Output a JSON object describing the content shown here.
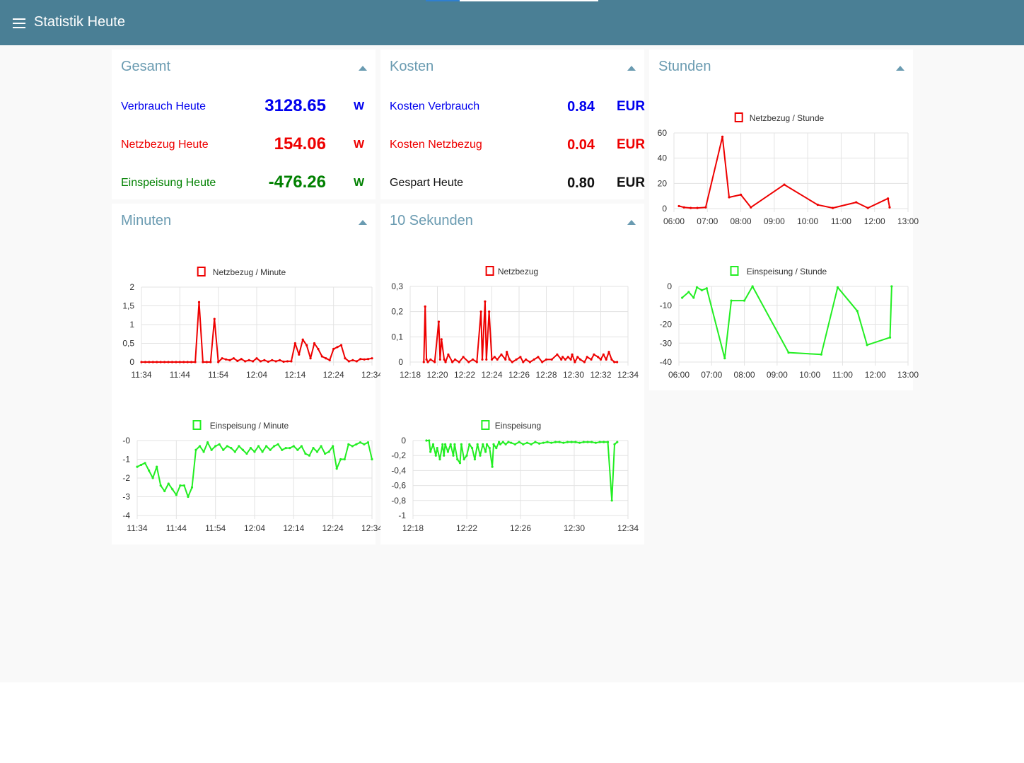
{
  "app": {
    "title": "Statistik Heute"
  },
  "colors": {
    "toolbar": "#4a7f95",
    "card_title": "#6a9bb1",
    "blue": "#0000ee",
    "red": "#ee0000",
    "green": "#008000",
    "series_red": "#ee0000",
    "series_green": "#22ee22"
  },
  "gesamt": {
    "title": "Gesamt",
    "rows": [
      {
        "label": "Verbrauch Heute",
        "value": "3128.65",
        "unit": "W",
        "color": "#0000ee"
      },
      {
        "label": "Netzbezug Heute",
        "value": "154.06",
        "unit": "W",
        "color": "#ee0000"
      },
      {
        "label": "Einspeisung Heute",
        "value": "-476.26",
        "unit": "W",
        "color": "#008000"
      }
    ]
  },
  "kosten": {
    "title": "Kosten",
    "rows": [
      {
        "label": "Kosten Verbrauch",
        "value": "0.84",
        "unit": "EUR",
        "color": "#0000ee"
      },
      {
        "label": "Kosten Netzbezug",
        "value": "0.04",
        "unit": "EUR",
        "color": "#ee0000"
      },
      {
        "label": "Gespart Heute",
        "value": "0.80",
        "unit": "EUR",
        "color": "#111111"
      }
    ]
  },
  "stunden": {
    "title": "Stunden"
  },
  "minuten": {
    "title": "Minuten"
  },
  "sekunden": {
    "title": "10 Sekunden"
  },
  "chart_data": [
    {
      "id": "stunden-netz",
      "type": "line",
      "legend": "Netzbezug / Stunde",
      "color": "#ee0000",
      "xlim": [
        6,
        13
      ],
      "x_ticks": [
        6,
        7,
        8,
        9,
        10,
        11,
        12,
        13
      ],
      "x_tick_labels": [
        "06:00",
        "07:00",
        "08:00",
        "09:00",
        "10:00",
        "11:00",
        "12:00",
        "13:00"
      ],
      "ylim": [
        0,
        60
      ],
      "y_ticks": [
        0,
        20,
        40,
        60
      ],
      "y_tick_labels": [
        "0",
        "20",
        "40",
        "60"
      ],
      "x": [
        6.15,
        6.3,
        6.5,
        6.7,
        6.95,
        7.45,
        7.65,
        8.0,
        8.3,
        9.3,
        10.3,
        10.75,
        11.45,
        11.8,
        12.4,
        12.45
      ],
      "y": [
        2,
        1,
        0.5,
        0.5,
        1,
        57,
        9,
        11,
        1,
        19,
        3,
        0.5,
        5,
        0.5,
        8,
        1
      ]
    },
    {
      "id": "stunden-einsp",
      "type": "line",
      "legend": "Einspeisung / Stunde",
      "color": "#22ee22",
      "xlim": [
        6,
        13
      ],
      "x_ticks": [
        6,
        7,
        8,
        9,
        10,
        11,
        12,
        13
      ],
      "x_tick_labels": [
        "06:00",
        "07:00",
        "08:00",
        "09:00",
        "10:00",
        "11:00",
        "12:00",
        "13:00"
      ],
      "ylim": [
        -40,
        0
      ],
      "y_ticks": [
        0,
        -10,
        -20,
        -30,
        -40
      ],
      "y_tick_labels": [
        "0",
        "-10",
        "-20",
        "-30",
        "-40"
      ],
      "x": [
        6.1,
        6.3,
        6.45,
        6.55,
        6.7,
        6.85,
        7.4,
        7.6,
        8.0,
        8.25,
        9.35,
        10.35,
        10.85,
        11.45,
        11.75,
        12.45,
        12.5
      ],
      "y": [
        -6,
        -3,
        -6,
        -0.5,
        -2,
        -1,
        -38,
        -7.5,
        -7.5,
        0,
        -35,
        -36,
        -0.5,
        -13,
        -31,
        -27,
        0
      ]
    },
    {
      "id": "minuten-netz",
      "type": "line",
      "legend": "Netzbezug / Minute",
      "color": "#ee0000",
      "xlim": [
        0,
        60
      ],
      "x_ticks": [
        0,
        10,
        20,
        30,
        40,
        50,
        60
      ],
      "x_tick_labels": [
        "11:34",
        "11:44",
        "11:54",
        "12:04",
        "12:14",
        "12:24",
        "12:34"
      ],
      "ylim": [
        0,
        2
      ],
      "y_ticks": [
        0,
        0.5,
        1,
        1.5,
        2
      ],
      "y_tick_labels": [
        "0",
        "0,5",
        "1",
        "1,5",
        "2"
      ],
      "x": [
        0,
        1,
        2,
        3,
        4,
        5,
        6,
        7,
        8,
        9,
        10,
        11,
        12,
        13,
        14,
        15,
        16,
        17,
        18,
        19,
        20,
        21,
        22,
        23,
        24,
        25,
        26,
        27,
        28,
        29,
        30,
        31,
        32,
        33,
        34,
        35,
        36,
        37,
        38,
        39,
        40,
        41,
        42,
        43,
        44,
        45,
        46,
        47,
        48,
        49,
        50,
        51,
        52,
        53,
        54,
        55,
        56,
        57,
        58,
        59,
        60
      ],
      "y": [
        0,
        0,
        0,
        0,
        0,
        0,
        0,
        0,
        0,
        0,
        0,
        0,
        0,
        0,
        0,
        1.6,
        0,
        0,
        0,
        1.15,
        0,
        0.1,
        0.07,
        0.05,
        0.1,
        0.03,
        0.08,
        0.02,
        0.05,
        0.02,
        0.1,
        0.02,
        0.05,
        0.01,
        0.05,
        0.02,
        0.05,
        0.01,
        0.02,
        0.02,
        0.5,
        0.2,
        0.6,
        0.45,
        0.1,
        0.5,
        0.35,
        0.15,
        0.1,
        0.05,
        0.35,
        0.4,
        0.45,
        0.1,
        0.02,
        0.05,
        0.02,
        0.08,
        0.07,
        0.08,
        0.1
      ]
    },
    {
      "id": "minuten-einsp",
      "type": "line",
      "legend": "Einspeisung / Minute",
      "color": "#22ee22",
      "xlim": [
        0,
        60
      ],
      "x_ticks": [
        0,
        10,
        20,
        30,
        40,
        50,
        60
      ],
      "x_tick_labels": [
        "11:34",
        "11:44",
        "11:54",
        "12:04",
        "12:14",
        "12:24",
        "12:34"
      ],
      "ylim": [
        -4,
        0
      ],
      "y_ticks": [
        0,
        -1,
        -2,
        -3,
        -4
      ],
      "y_tick_labels": [
        "-0",
        "-1",
        "-2",
        "-3",
        "-4"
      ],
      "x": [
        0,
        1,
        2,
        3,
        4,
        5,
        6,
        7,
        8,
        9,
        10,
        11,
        12,
        13,
        14,
        15,
        16,
        17,
        18,
        19,
        20,
        21,
        22,
        23,
        24,
        25,
        26,
        27,
        28,
        29,
        30,
        31,
        32,
        33,
        34,
        35,
        36,
        37,
        38,
        39,
        40,
        41,
        42,
        43,
        44,
        45,
        46,
        47,
        48,
        49,
        50,
        51,
        52,
        53,
        54,
        55,
        56,
        57,
        58,
        59,
        60
      ],
      "y": [
        -1.4,
        -1.3,
        -1.2,
        -1.6,
        -2.0,
        -1.4,
        -2.4,
        -2.7,
        -2.3,
        -2.6,
        -2.9,
        -2.4,
        -2.4,
        -3.0,
        -2.5,
        -0.5,
        -0.3,
        -0.6,
        -0.1,
        -0.5,
        -0.3,
        -0.2,
        -0.5,
        -0.3,
        -0.4,
        -0.6,
        -0.3,
        -0.5,
        -0.7,
        -0.4,
        -0.6,
        -0.3,
        -0.6,
        -0.3,
        -0.5,
        -0.3,
        -0.2,
        -0.5,
        -0.4,
        -0.4,
        -0.3,
        -0.5,
        -0.3,
        -0.7,
        -0.8,
        -0.4,
        -0.6,
        -0.3,
        -0.7,
        -0.6,
        -0.3,
        -1.5,
        -1.0,
        -1.0,
        -0.2,
        -0.3,
        -0.2,
        -0.1,
        -0.2,
        -0.1,
        -1.0
      ]
    },
    {
      "id": "sekunden-netz",
      "type": "line",
      "legend": "Netzbezug",
      "color": "#ee0000",
      "xlim": [
        0,
        16
      ],
      "x_ticks": [
        0,
        2,
        4,
        6,
        8,
        10,
        12,
        14,
        16
      ],
      "x_tick_labels": [
        "12:18",
        "12:20",
        "12:22",
        "12:24",
        "12:26",
        "12:28",
        "12:30",
        "12:32",
        "12:34"
      ],
      "ylim": [
        0,
        0.3
      ],
      "y_ticks": [
        0,
        0.1,
        0.2,
        0.3
      ],
      "y_tick_labels": [
        "0",
        "0,1",
        "0,2",
        "0,3"
      ],
      "x": [
        1.0,
        1.1,
        1.2,
        1.3,
        1.5,
        1.8,
        2.1,
        2.2,
        2.3,
        2.5,
        2.6,
        2.8,
        3.1,
        3.3,
        3.6,
        3.9,
        4.3,
        4.6,
        4.9,
        5.2,
        5.3,
        5.5,
        5.6,
        5.8,
        6.0,
        6.2,
        6.4,
        6.7,
        7.0,
        7.1,
        7.3,
        7.5,
        7.8,
        8.1,
        8.3,
        8.5,
        8.8,
        9.1,
        9.4,
        9.7,
        10.0,
        10.4,
        10.8,
        11.1,
        11.2,
        11.4,
        11.6,
        11.8,
        11.9,
        12.1,
        12.3,
        12.5,
        12.8,
        13.0,
        13.3,
        13.5,
        13.8,
        14.0,
        14.2,
        14.4,
        14.6,
        14.8,
        15.0,
        15.2
      ],
      "y": [
        0,
        0.22,
        0.01,
        0,
        0.01,
        0,
        0.16,
        0.01,
        0.09,
        0.01,
        0,
        0.03,
        0,
        0.01,
        0,
        0.02,
        0,
        0.01,
        0,
        0.2,
        0.01,
        0.24,
        0.01,
        0.2,
        0.01,
        0.02,
        0.01,
        0.03,
        0.01,
        0.04,
        0.01,
        0,
        0.01,
        0.02,
        0,
        0.01,
        0,
        0.01,
        0.02,
        0,
        0.01,
        0.01,
        0.03,
        0.01,
        0.02,
        0.01,
        0.02,
        0.01,
        0.03,
        0,
        0.02,
        0.01,
        0,
        0.02,
        0.01,
        0.03,
        0.02,
        0.01,
        0.03,
        0.01,
        0.04,
        0.01,
        0,
        0
      ]
    },
    {
      "id": "sekunden-einsp",
      "type": "line",
      "legend": "Einspeisung",
      "color": "#22ee22",
      "xlim": [
        0,
        16
      ],
      "x_ticks": [
        0,
        4,
        8,
        12,
        16
      ],
      "x_tick_labels": [
        "12:18",
        "12:22",
        "12:26",
        "12:30",
        "12:34"
      ],
      "ylim": [
        -1,
        0
      ],
      "y_ticks": [
        0,
        -0.2,
        -0.4,
        -0.6,
        -0.8,
        -1
      ],
      "y_tick_labels": [
        "0",
        "-0,2",
        "-0,4",
        "-0,6",
        "-0,8",
        "-1"
      ],
      "x": [
        1.0,
        1.2,
        1.3,
        1.5,
        1.7,
        1.8,
        2.0,
        2.2,
        2.3,
        2.4,
        2.6,
        2.8,
        3.0,
        3.1,
        3.3,
        3.5,
        3.6,
        3.8,
        4.0,
        4.2,
        4.4,
        4.6,
        4.8,
        5.0,
        5.2,
        5.4,
        5.5,
        5.7,
        5.9,
        6.0,
        6.2,
        6.4,
        6.5,
        6.7,
        6.9,
        7.1,
        7.3,
        7.6,
        7.9,
        8.2,
        8.5,
        8.8,
        9.1,
        9.4,
        9.7,
        10.0,
        10.3,
        10.6,
        10.9,
        11.2,
        11.5,
        11.8,
        12.1,
        12.4,
        12.7,
        13.0,
        13.3,
        13.6,
        13.9,
        14.2,
        14.5,
        14.8,
        15.0,
        15.2
      ],
      "y": [
        0,
        0,
        -0.15,
        -0.05,
        -0.2,
        -0.1,
        -0.25,
        -0.05,
        -0.2,
        -0.05,
        -0.15,
        -0.05,
        -0.2,
        -0.05,
        -0.25,
        -0.3,
        -0.05,
        -0.25,
        -0.2,
        -0.05,
        -0.1,
        -0.25,
        -0.05,
        -0.2,
        -0.05,
        -0.15,
        -0.05,
        -0.1,
        -0.35,
        -0.05,
        -0.1,
        -0.02,
        -0.05,
        -0.02,
        -0.05,
        -0.02,
        -0.03,
        -0.05,
        -0.02,
        -0.05,
        -0.03,
        -0.05,
        -0.02,
        -0.04,
        -0.03,
        -0.02,
        -0.03,
        -0.02,
        -0.02,
        -0.03,
        -0.02,
        -0.02,
        -0.02,
        -0.03,
        -0.02,
        -0.02,
        -0.02,
        -0.03,
        -0.02,
        -0.02,
        -0.02,
        -0.8,
        -0.05,
        -0.02
      ]
    }
  ]
}
